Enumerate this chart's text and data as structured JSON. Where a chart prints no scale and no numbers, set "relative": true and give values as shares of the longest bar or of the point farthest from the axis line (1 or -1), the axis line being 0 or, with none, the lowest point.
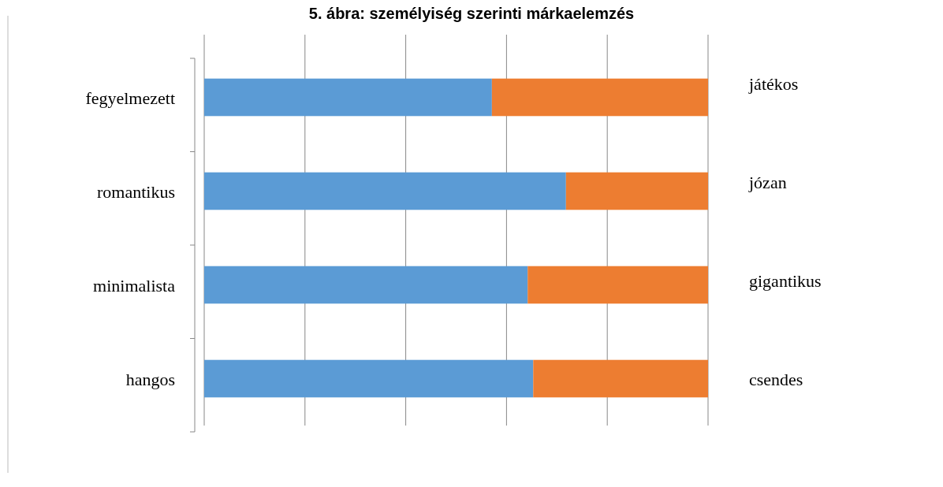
{
  "chart_data": {
    "type": "bar",
    "orientation": "horizontal",
    "stacked": true,
    "relative": true,
    "grid": true,
    "title": "5. ábra: személyiség szerinti márkaelemzés",
    "categories": [
      "fegyelmezett",
      "romantikus",
      "minimalista",
      "hangos"
    ],
    "y2_categories": [
      "játékos",
      "józan",
      "gigantikus",
      "csendes"
    ],
    "series": [
      {
        "color": "#5b9bd5",
        "values": [
          0.571,
          0.718,
          0.642,
          0.653
        ]
      },
      {
        "color": "#ed7d31",
        "values": [
          0.429,
          0.282,
          0.358,
          0.347
        ]
      }
    ]
  }
}
